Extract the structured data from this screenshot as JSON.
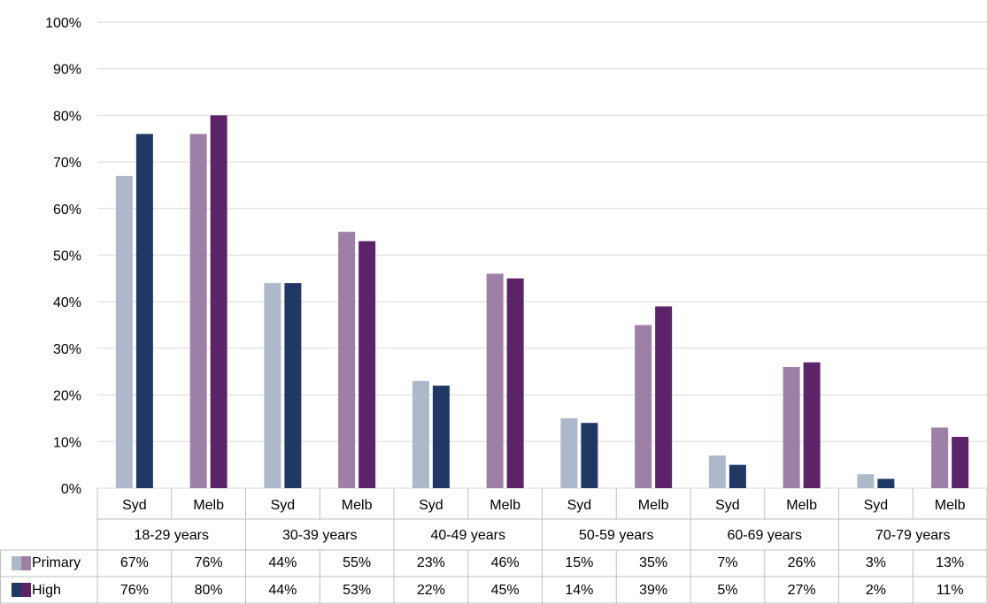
{
  "chart_data": {
    "type": "bar",
    "title": "",
    "xlabel": "",
    "ylabel": "",
    "ylim": [
      0,
      100
    ],
    "y_ticks": [
      "0%",
      "10%",
      "20%",
      "30%",
      "40%",
      "50%",
      "60%",
      "70%",
      "80%",
      "90%",
      "100%"
    ],
    "grid": true,
    "legend": "data-table",
    "groups": [
      "18-29 years",
      "30-39 years",
      "40-49 years",
      "50-59 years",
      "60-69 years",
      "70-79 years"
    ],
    "cities": [
      "Syd",
      "Melb"
    ],
    "series": [
      {
        "name": "Primary",
        "values": [
          67,
          76,
          44,
          55,
          23,
          46,
          15,
          35,
          7,
          26,
          3,
          13
        ],
        "labels": [
          "67%",
          "76%",
          "44%",
          "55%",
          "23%",
          "46%",
          "15%",
          "35%",
          "7%",
          "26%",
          "3%",
          "13%"
        ]
      },
      {
        "name": "High",
        "values": [
          76,
          80,
          44,
          53,
          22,
          45,
          14,
          39,
          5,
          27,
          2,
          11
        ],
        "labels": [
          "76%",
          "80%",
          "44%",
          "53%",
          "22%",
          "45%",
          "14%",
          "39%",
          "5%",
          "27%",
          "2%",
          "11%"
        ]
      }
    ],
    "colors": {
      "Syd": {
        "Primary": "#adb9ca",
        "High": "#203864"
      },
      "Melb": {
        "Primary": "#9e7fa5",
        "High": "#5c2369"
      },
      "grid": "#d9d9d9",
      "table_border": "#bfbfbf"
    }
  }
}
